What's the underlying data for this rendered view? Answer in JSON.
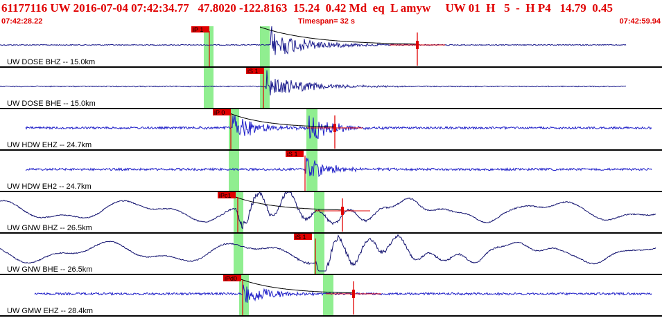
{
  "header": {
    "title": "61177116 UW 2016-07-04 07:42:34.77   47.8020 -122.8163  15.24  0.42 Md  eq  L amyw     UW 01  H   5  -  H P4   14.79  0.45",
    "time_start": "07:42:28.22",
    "timespan": "Timespan=  32 s",
    "time_end": "07:42:59.94"
  },
  "colors": {
    "header_text": "#e00000",
    "trace_short_period": "#1a1a8c",
    "trace_broadband": "#10106e",
    "trace_accel": "#1e1ec8",
    "pick_flag": "#e00000",
    "pick_window": "#90ee90",
    "separator": "#000000"
  },
  "panels": [
    {
      "label": "UW DOSE BHZ -- 15.0km",
      "style": "sp",
      "pick": "iP 1",
      "quake_kind": "p"
    },
    {
      "label": "UW DOSE BHE -- 15.0km",
      "style": "sp",
      "pick": "iS 1",
      "quake_kind": "s"
    },
    {
      "label": "UW HDW EHZ -- 24.7km",
      "style": "accel",
      "pick": "iP 0",
      "quake_kind": "p"
    },
    {
      "label": "UW HDW EH2 -- 24.7km",
      "style": "accel",
      "pick": "iS 1",
      "quake_kind": "s"
    },
    {
      "label": "UW GNW BHZ -- 26.5km",
      "style": "bb",
      "pick": "iPc1",
      "quake_kind": "p"
    },
    {
      "label": "UW GNW BHE -- 26.5km",
      "style": "bb",
      "pick": "iS 1",
      "quake_kind": "s"
    },
    {
      "label": "UW GMW EHZ -- 28.4km",
      "style": "accel",
      "pick": "iPd0",
      "quake_kind": "p"
    }
  ]
}
